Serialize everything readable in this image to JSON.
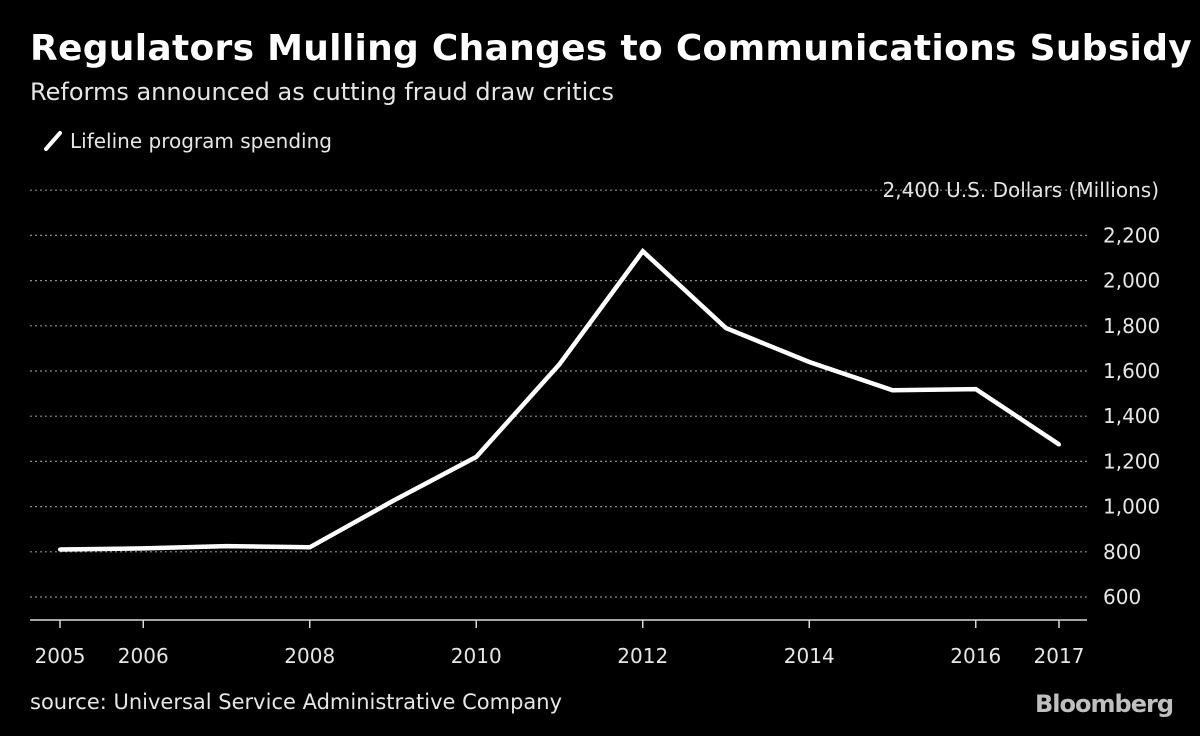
{
  "header": {
    "title": "Regulators Mulling Changes to Communications Subsidy",
    "subtitle": "Reforms announced as cutting fraud draw critics"
  },
  "legend": {
    "label": "Lifeline program spending"
  },
  "footer": {
    "source": "source: Universal Service Administrative Company",
    "brand": "Bloomberg"
  },
  "colors": {
    "background": "#000000",
    "line": "#ffffff",
    "grid": "#8c8c8c",
    "text": "#e6e6e6"
  },
  "chart_data": {
    "type": "line",
    "title": "Regulators Mulling Changes to Communications Subsidy",
    "subtitle": "Reforms announced as cutting fraud draw critics",
    "unit_label": "U.S. Dollars (Millions)",
    "ylim": [
      600,
      2400
    ],
    "y_ticks": [
      600,
      800,
      1000,
      1200,
      1400,
      1600,
      1800,
      2000,
      2200,
      2400
    ],
    "y_tick_labels": [
      "600",
      "800",
      "1,000",
      "1,200",
      "1,400",
      "1,600",
      "1,800",
      "2,000",
      "2,200",
      "2,400"
    ],
    "xlim": [
      2005,
      2017
    ],
    "x_ticks": [
      2005,
      2006,
      2008,
      2010,
      2012,
      2014,
      2016,
      2017
    ],
    "x_tick_labels": [
      "2005",
      "2006",
      "2008",
      "2010",
      "2012",
      "2014",
      "2016",
      "2017"
    ],
    "grid": "horizontal dotted",
    "legend_position": "top-left",
    "series": [
      {
        "name": "Lifeline program spending",
        "x": [
          2005,
          2006,
          2007,
          2008,
          2009,
          2010,
          2011,
          2012,
          2013,
          2014,
          2015,
          2016,
          2017
        ],
        "values": [
          810,
          815,
          825,
          820,
          1025,
          1220,
          1630,
          2130,
          1790,
          1640,
          1515,
          1520,
          1275
        ]
      }
    ]
  }
}
